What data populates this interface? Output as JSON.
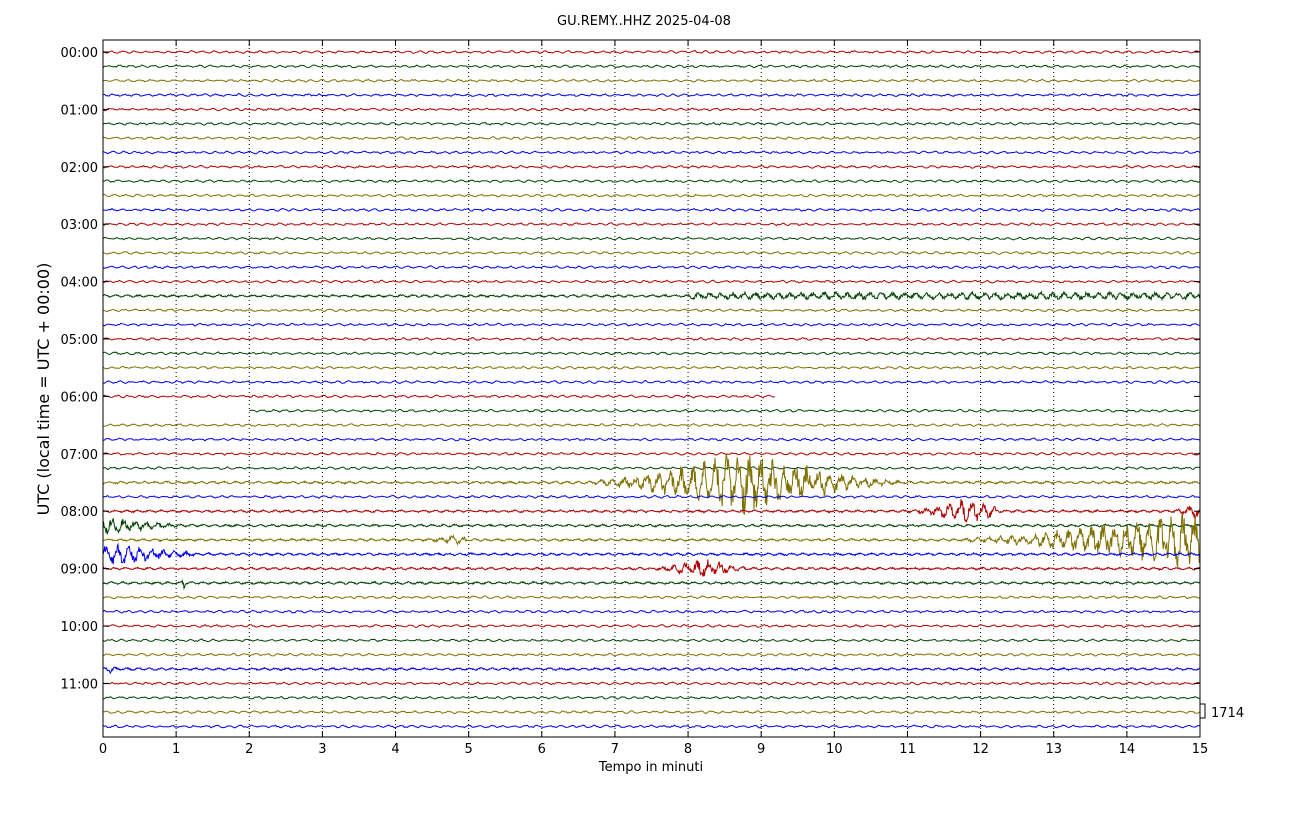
{
  "chart_data": {
    "type": "line",
    "title": "GU.REMY..HHZ 2025-04-08",
    "xlabel": "Tempo in minuti",
    "ylabel": "UTC (local time = UTC + 00:00)",
    "xlim": [
      0,
      15
    ],
    "x_ticks": [
      "0",
      "1",
      "2",
      "3",
      "4",
      "5",
      "6",
      "7",
      "8",
      "9",
      "10",
      "11",
      "12",
      "13",
      "14",
      "15"
    ],
    "y_tick_labels": [
      "00:00",
      "01:00",
      "02:00",
      "03:00",
      "04:00",
      "05:00",
      "06:00",
      "07:00",
      "08:00",
      "09:00",
      "10:00",
      "11:00"
    ],
    "row_interval_minutes": 15,
    "row_count": 48,
    "colors": [
      "#b00000",
      "#004400",
      "#807000",
      "#0000ee"
    ],
    "grid": "vertical dotted at each minute",
    "scale_label": "1714",
    "gaps": [
      {
        "row_time": "06:00",
        "x_end": 9.2
      },
      {
        "row_time": "06:15",
        "x_start": 2.0
      }
    ],
    "events": [
      {
        "row_time": "04:15",
        "x_start": 8.0,
        "x_end": 15.0,
        "amplitude": 4
      },
      {
        "row_time": "07:30",
        "x_start": 6.5,
        "x_end": 10.9,
        "peak_x": 8.8,
        "amplitude": 34
      },
      {
        "row_time": "08:00",
        "x_start": 11.0,
        "x_end": 12.2,
        "peak_x": 11.8,
        "amplitude": 13
      },
      {
        "row_time": "08:00",
        "x_start": 14.6,
        "x_end": 15.0,
        "peak_x": 15.0,
        "amplitude": 10
      },
      {
        "row_time": "08:15",
        "x_start": 0.0,
        "x_end": 1.2,
        "peak_x": 0.05,
        "amplitude": 8
      },
      {
        "row_time": "08:30",
        "x_start": 11.5,
        "x_end": 15.0,
        "peak_x": 14.7,
        "amplitude": 28
      },
      {
        "row_time": "08:30",
        "x_start": 4.4,
        "x_end": 5.0,
        "peak_x": 4.8,
        "amplitude": 4
      },
      {
        "row_time": "08:45",
        "x_start": 0.0,
        "x_end": 1.6,
        "peak_x": 0.05,
        "amplitude": 12
      },
      {
        "row_time": "09:00",
        "x_start": 7.5,
        "x_end": 8.8,
        "peak_x": 8.2,
        "amplitude": 10
      },
      {
        "row_time": "09:15",
        "x_start": 1.05,
        "x_end": 1.15,
        "peak_x": 1.1,
        "amplitude": 8
      },
      {
        "row_time": "10:45",
        "x_start": 0.0,
        "x_end": 0.2,
        "peak_x": 0.1,
        "amplitude": 4
      }
    ]
  }
}
